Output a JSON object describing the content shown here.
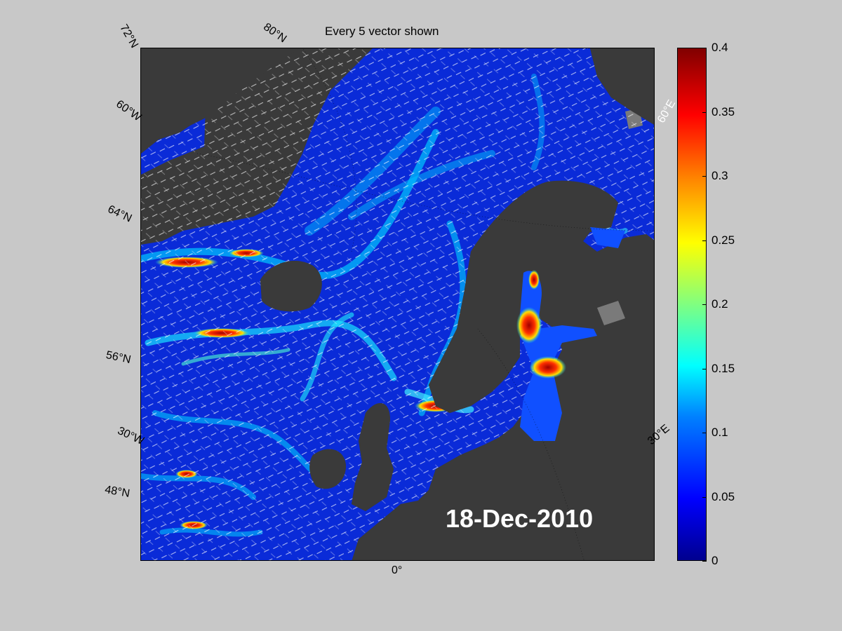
{
  "title": "Every 5 vector shown",
  "date": "18-Dec-2010",
  "graticule_labels": {
    "lat_72": "72°N",
    "lat_80": "80°N",
    "lat_60": "60°W",
    "lat_64": "64°N",
    "lat_56": "56°N",
    "lon_30w": "30°W",
    "lat_48": "48°N",
    "lon_0": "0°",
    "lon_60e": "60°E",
    "lon_30e": "30°E"
  },
  "colorbar": {
    "ticks": [
      "0",
      "0.05",
      "0.1",
      "0.15",
      "0.2",
      "0.25",
      "0.3",
      "0.35",
      "0.4"
    ],
    "min": 0,
    "max": 0.4
  },
  "colors": {
    "land": "#3a3a3a",
    "ice": "#7a7a7a",
    "ocean_low": "#0a2bd8",
    "ocean_mid": "#00e0ff",
    "ocean_high": "#ff2000",
    "background": "#c8c8c8"
  }
}
